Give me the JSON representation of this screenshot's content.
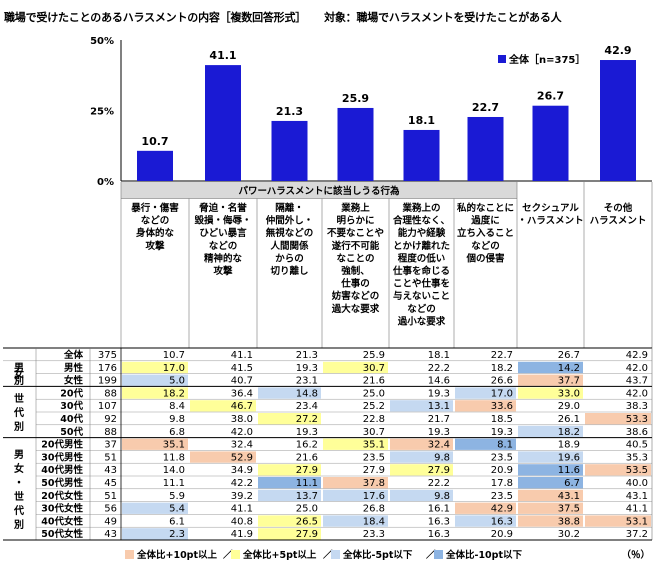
{
  "title": "職場で受けたことのあるハラスメントの内容［複数回答形式］",
  "subject": "対象：職場でハラスメントを受けたことがある人",
  "chart_data": {
    "type": "bar",
    "title": "職場で受けたことのあるハラスメントの内容［複数回答形式］",
    "ylim": [
      0,
      50
    ],
    "yticks": [
      "0%",
      "25%",
      "50%"
    ],
    "grid": false,
    "legend_position": "top-right",
    "group_header": "パワーハラスメントに該当しうる行為",
    "categories": [
      "暴行・傷害\nなどの\n身体的な\n攻撃",
      "脅迫・名誉\n毀損・侮辱・\nひどい暴言\nなどの\n精神的な\n攻撃",
      "隔離・\n仲間外し・\n無視などの\n人間関係\nからの\n切り離し",
      "業務上\n明らかに\n不要なことや\n遂行不可能\nなことの\n強制、\n仕事の\n妨害などの\n過大な要求",
      "業務上の\n合理性なく、\n能力や経験\nとかけ離れた\n程度の低い\n仕事を命じる\nことや仕事を\n与えないこと\nなどの\n過小な要求",
      "私的なことに\n過度に\n立ち入ること\nなどの\n個の侵害",
      "セクシュアル\n・ハラスメント",
      "その他\nハラスメント"
    ],
    "series": [
      {
        "name": "全体［n=375］",
        "values": [
          10.7,
          41.1,
          21.3,
          25.9,
          18.1,
          22.7,
          26.7,
          42.9
        ]
      }
    ],
    "table": {
      "rows": [
        {
          "group": "",
          "label": "全体",
          "n": "375",
          "values": [
            "10.7",
            "41.1",
            "21.3",
            "25.9",
            "18.1",
            "22.7",
            "26.7",
            "42.9"
          ],
          "hl": [
            0,
            0,
            0,
            0,
            0,
            0,
            0,
            0
          ]
        },
        {
          "group": "男女別",
          "label": "男性",
          "n": "176",
          "values": [
            "17.0",
            "41.5",
            "19.3",
            "30.7",
            "22.2",
            "18.2",
            "14.2",
            "42.0"
          ],
          "hl": [
            2,
            0,
            0,
            2,
            0,
            0,
            4,
            0
          ]
        },
        {
          "group": "男女別",
          "label": "女性",
          "n": "199",
          "values": [
            "5.0",
            "40.7",
            "23.1",
            "21.6",
            "14.6",
            "26.6",
            "37.7",
            "43.7"
          ],
          "hl": [
            3,
            0,
            0,
            0,
            0,
            0,
            1,
            0
          ]
        },
        {
          "group": "世代別",
          "label": "20代",
          "n": "88",
          "values": [
            "18.2",
            "36.4",
            "14.8",
            "25.0",
            "19.3",
            "17.0",
            "33.0",
            "42.0"
          ],
          "hl": [
            2,
            0,
            3,
            0,
            0,
            3,
            2,
            0
          ]
        },
        {
          "group": "世代別",
          "label": "30代",
          "n": "107",
          "values": [
            "8.4",
            "46.7",
            "23.4",
            "25.2",
            "13.1",
            "33.6",
            "29.0",
            "38.3"
          ],
          "hl": [
            0,
            2,
            0,
            0,
            3,
            1,
            0,
            0
          ]
        },
        {
          "group": "世代別",
          "label": "40代",
          "n": "92",
          "values": [
            "9.8",
            "38.0",
            "27.2",
            "22.8",
            "21.7",
            "18.5",
            "26.1",
            "53.3"
          ],
          "hl": [
            0,
            0,
            2,
            0,
            0,
            0,
            0,
            1
          ]
        },
        {
          "group": "世代別",
          "label": "50代",
          "n": "88",
          "values": [
            "6.8",
            "42.0",
            "19.3",
            "30.7",
            "19.3",
            "19.3",
            "18.2",
            "38.6"
          ],
          "hl": [
            0,
            0,
            0,
            0,
            0,
            0,
            3,
            0
          ]
        },
        {
          "group": "男女・世代別",
          "label": "20代男性",
          "n": "37",
          "values": [
            "35.1",
            "32.4",
            "16.2",
            "35.1",
            "32.4",
            "8.1",
            "18.9",
            "40.5"
          ],
          "hl": [
            1,
            0,
            0,
            2,
            1,
            4,
            0,
            0
          ]
        },
        {
          "group": "男女・世代別",
          "label": "30代男性",
          "n": "51",
          "values": [
            "11.8",
            "52.9",
            "21.6",
            "23.5",
            "9.8",
            "23.5",
            "19.6",
            "35.3"
          ],
          "hl": [
            0,
            1,
            0,
            0,
            3,
            0,
            3,
            0
          ]
        },
        {
          "group": "男女・世代別",
          "label": "40代男性",
          "n": "43",
          "values": [
            "14.0",
            "34.9",
            "27.9",
            "27.9",
            "27.9",
            "20.9",
            "11.6",
            "53.5"
          ],
          "hl": [
            0,
            0,
            2,
            0,
            2,
            0,
            4,
            1
          ]
        },
        {
          "group": "男女・世代別",
          "label": "50代男性",
          "n": "45",
          "values": [
            "11.1",
            "42.2",
            "11.1",
            "37.8",
            "22.2",
            "17.8",
            "6.7",
            "40.0"
          ],
          "hl": [
            0,
            0,
            4,
            1,
            0,
            0,
            4,
            0
          ]
        },
        {
          "group": "男女・世代別",
          "label": "20代女性",
          "n": "51",
          "values": [
            "5.9",
            "39.2",
            "13.7",
            "17.6",
            "9.8",
            "23.5",
            "43.1",
            "43.1"
          ],
          "hl": [
            0,
            0,
            3,
            3,
            3,
            0,
            1,
            0
          ]
        },
        {
          "group": "男女・世代別",
          "label": "30代女性",
          "n": "56",
          "values": [
            "5.4",
            "41.1",
            "25.0",
            "26.8",
            "16.1",
            "42.9",
            "37.5",
            "41.1"
          ],
          "hl": [
            3,
            0,
            0,
            0,
            0,
            1,
            1,
            0
          ]
        },
        {
          "group": "男女・世代別",
          "label": "40代女性",
          "n": "49",
          "values": [
            "6.1",
            "40.8",
            "26.5",
            "18.4",
            "16.3",
            "16.3",
            "38.8",
            "53.1"
          ],
          "hl": [
            0,
            0,
            2,
            3,
            0,
            3,
            1,
            1
          ]
        },
        {
          "group": "男女・世代別",
          "label": "50代女性",
          "n": "43",
          "values": [
            "2.3",
            "41.9",
            "27.9",
            "23.3",
            "16.3",
            "20.9",
            "30.2",
            "37.2"
          ],
          "hl": [
            3,
            0,
            2,
            0,
            0,
            0,
            0,
            0
          ]
        }
      ],
      "group_labels": [
        "男女別",
        "世代別",
        "男女・世代別"
      ]
    },
    "highlight_legend": [
      {
        "label": "全体比+10pt以上",
        "color": "#f8cbad"
      },
      {
        "label": "全体比+5pt以上",
        "color": "#ffff99"
      },
      {
        "label": "全体比-5pt以下",
        "color": "#c5d9f1"
      },
      {
        "label": "全体比-10pt以下",
        "color": "#8db4e2"
      }
    ],
    "unit": "（％）",
    "colors": {
      "bar": "#1a1ad4",
      "header": "#d9d9d9"
    }
  }
}
